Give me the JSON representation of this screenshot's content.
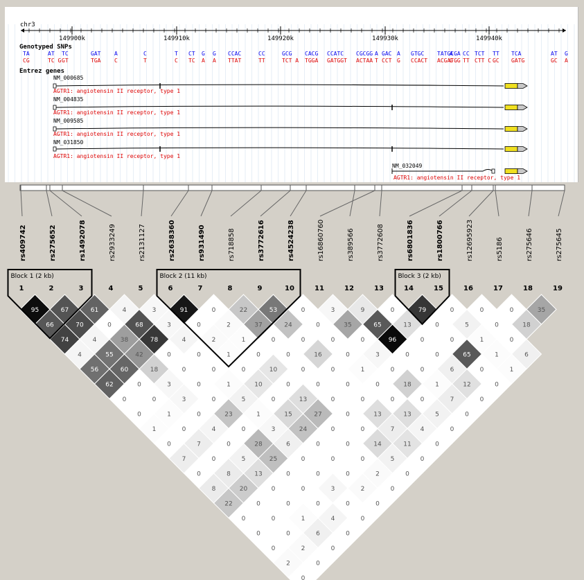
{
  "chromosome": "chr3",
  "ruler_ticks": [
    "149900k",
    "149910k",
    "149920k",
    "149930k",
    "149940k"
  ],
  "tracks": {
    "snps_label": "Genotyped SNPs",
    "genes_label": "Entrez genes"
  },
  "snp_alleles_top": [
    "TA",
    "AT",
    "TC",
    "GAT",
    "A",
    "C",
    "T",
    "CT",
    "G",
    "G",
    "CCAC",
    "CC",
    "GCG",
    "CACG",
    "CCATC",
    "CGCGG",
    "A",
    "GAC",
    "A",
    "GTGC",
    "TATGCGA",
    "A",
    "CC",
    "TCT",
    "TT",
    "TCA",
    "AT",
    "G"
  ],
  "snp_alleles_bottom": [
    "CG",
    "TC G",
    "GT",
    "TGA",
    "C",
    "T",
    "C",
    "TC",
    "A",
    "A",
    "TTAT",
    "TT",
    "TCT A",
    "TGGA",
    "GATGGT",
    "ACTAA",
    "T",
    "CCT",
    "G",
    "CCACT",
    "ACGATGG",
    "G",
    "TT",
    "CTT C",
    "GC",
    "GATG",
    "GC",
    "A"
  ],
  "genes": [
    {
      "accession": "NM_000685",
      "desc": "AGTR1: angiotensin II receptor, type 1"
    },
    {
      "accession": "NM_004835",
      "desc": "AGTR1: angiotensin II receptor, type 1"
    },
    {
      "accession": "NM_009585",
      "desc": "AGTR1: angiotensin II receptor, type 1"
    },
    {
      "accession": "NM_031850",
      "desc": "AGTR1: angiotensin II receptor, type 1"
    },
    {
      "accession": "NM_032049",
      "desc": "AGTR1: angiotensin II receptor, type 1"
    }
  ],
  "snps": [
    {
      "id": "rs409742",
      "bold": true
    },
    {
      "id": "rs275652",
      "bold": true
    },
    {
      "id": "rs1492078",
      "bold": true
    },
    {
      "id": "rs2933249",
      "bold": false
    },
    {
      "id": "rs2131127",
      "bold": false
    },
    {
      "id": "rs2638360",
      "bold": true
    },
    {
      "id": "rs931490",
      "bold": true
    },
    {
      "id": "rs718858",
      "bold": false
    },
    {
      "id": "rs3772616",
      "bold": true
    },
    {
      "id": "rs4524238",
      "bold": true
    },
    {
      "id": "rs16860760",
      "bold": false
    },
    {
      "id": "rs389566",
      "bold": false
    },
    {
      "id": "rs3772608",
      "bold": false
    },
    {
      "id": "rs6801836",
      "bold": true
    },
    {
      "id": "rs1800766",
      "bold": true
    },
    {
      "id": "rs12695923",
      "bold": false
    },
    {
      "id": "rs5186",
      "bold": false
    },
    {
      "id": "rs275646",
      "bold": false
    },
    {
      "id": "rs275645",
      "bold": false
    }
  ],
  "marker_numbers": [
    "1",
    "2",
    "3",
    "4",
    "5",
    "6",
    "7",
    "8",
    "9",
    "10",
    "11",
    "12",
    "13",
    "14",
    "15",
    "16",
    "17",
    "18",
    "19"
  ],
  "blocks": [
    {
      "label": "Block 1 (2 kb)",
      "start": 1,
      "end": 3
    },
    {
      "label": "Block 2 (11 kb)",
      "start": 6,
      "end": 10
    },
    {
      "label": "Block 3 (2 kb)",
      "start": 14,
      "end": 15
    }
  ],
  "ld_rows": [
    [
      95,
      67,
      61,
      4,
      3,
      91,
      0,
      22,
      53,
      0,
      3,
      9,
      0,
      79,
      0,
      0,
      0,
      35
    ],
    [
      66,
      70,
      0,
      68,
      3,
      0,
      2,
      37,
      24,
      0,
      35,
      65,
      13,
      0,
      5,
      0,
      18
    ],
    [
      74,
      4,
      38,
      78,
      4,
      2,
      1,
      0,
      0,
      0,
      0,
      96,
      0,
      0,
      1,
      0
    ],
    [
      4,
      55,
      42,
      0,
      0,
      1,
      0,
      0,
      16,
      0,
      3,
      0,
      0,
      65,
      1,
      6
    ],
    [
      56,
      60,
      18,
      0,
      0,
      0,
      10,
      0,
      0,
      1,
      0,
      0,
      6,
      0,
      1
    ],
    [
      62,
      0,
      3,
      0,
      1,
      10,
      0,
      0,
      0,
      0,
      18,
      1,
      12,
      0
    ],
    [
      0,
      0,
      3,
      0,
      5,
      0,
      13,
      0,
      0,
      0,
      0,
      7,
      0
    ],
    [
      0,
      1,
      0,
      23,
      1,
      15,
      27,
      0,
      13,
      13,
      5,
      0
    ],
    [
      1,
      0,
      4,
      0,
      3,
      24,
      0,
      0,
      7,
      4,
      0
    ],
    [
      0,
      7,
      0,
      28,
      6,
      0,
      0,
      14,
      11,
      0
    ],
    [
      7,
      0,
      5,
      25,
      0,
      0,
      0,
      5,
      0
    ],
    [
      0,
      8,
      13,
      0,
      0,
      0,
      2,
      0
    ],
    [
      8,
      20,
      0,
      0,
      3,
      2,
      0
    ],
    [
      22,
      0,
      0,
      0,
      0,
      0
    ],
    [
      0,
      0,
      1,
      4,
      0
    ],
    [
      0,
      0,
      6,
      0
    ],
    [
      0,
      2,
      0
    ],
    [
      2,
      0
    ],
    [
      0
    ]
  ]
}
